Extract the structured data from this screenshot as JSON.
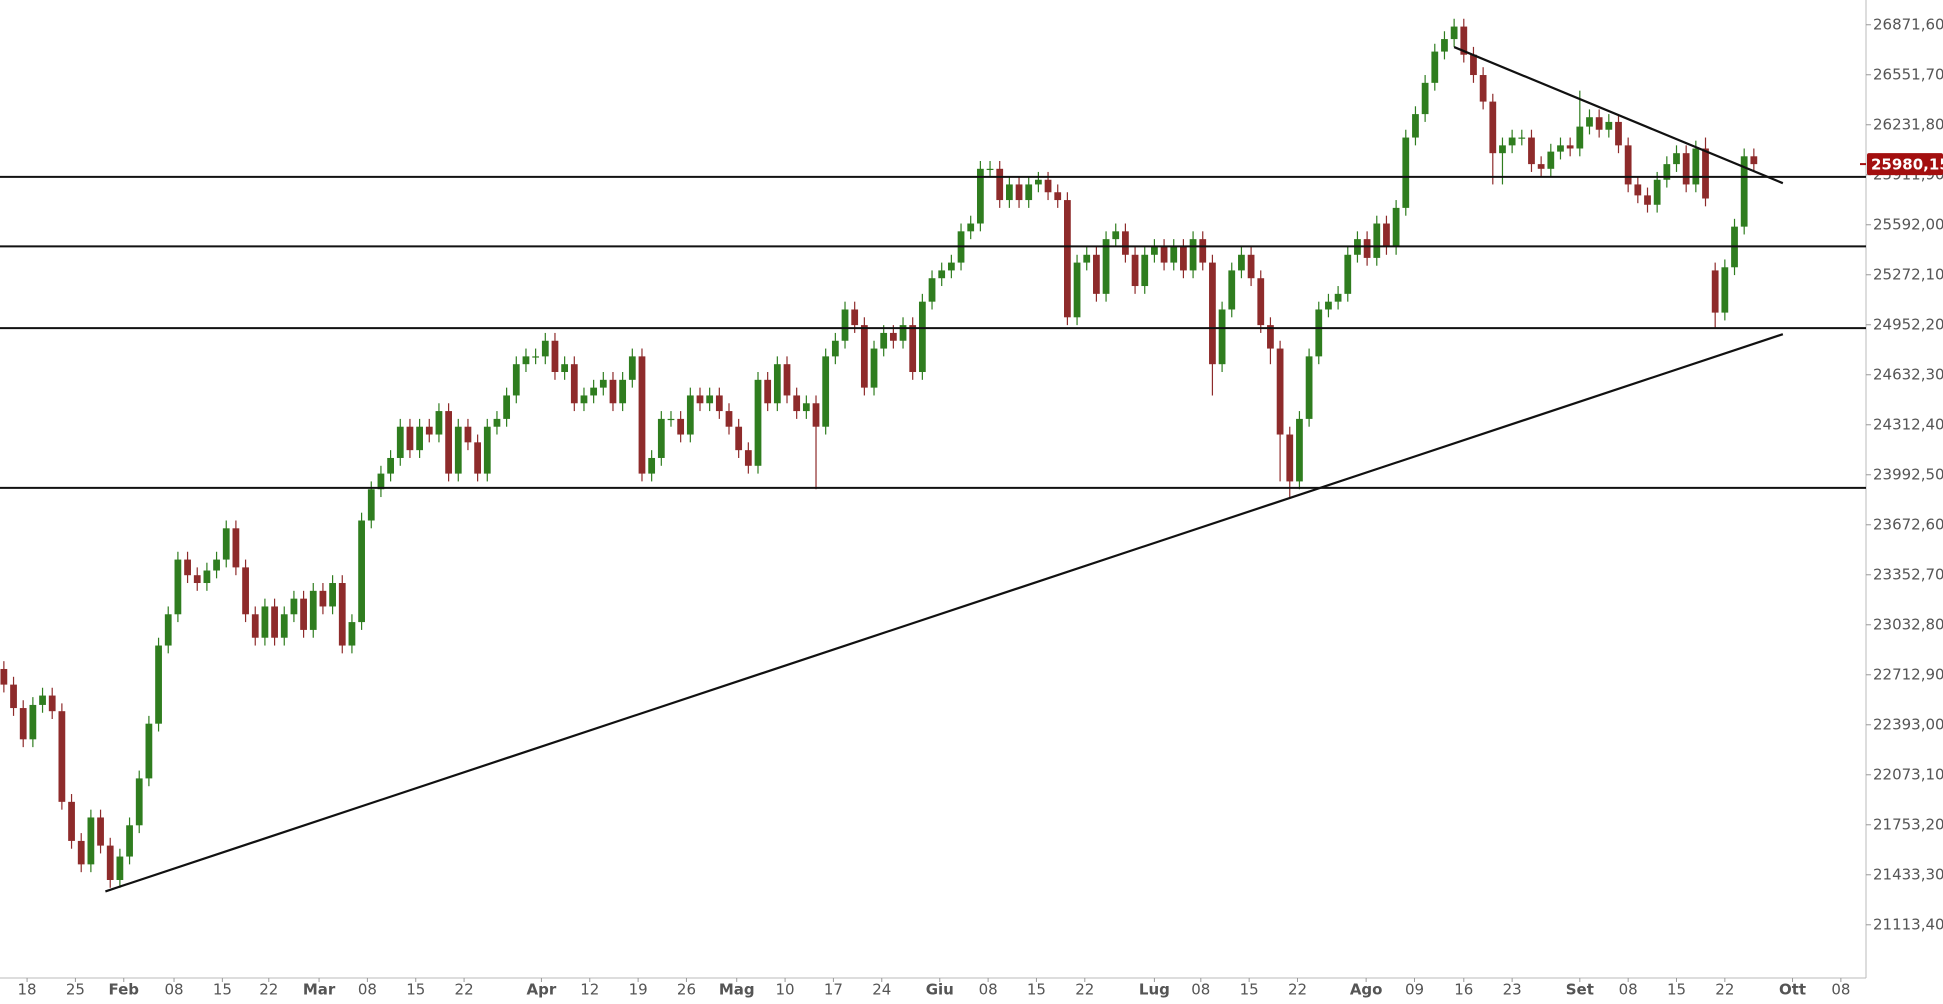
{
  "chart_data": {
    "type": "candlestick",
    "up_color": "#2f7d1f",
    "down_color": "#8e2b2b",
    "xlim": [
      -0.4,
      192.6
    ],
    "ylim": [
      20773,
      27030
    ],
    "yticks": [
      {
        "value": 26871.6,
        "label": "26871,60"
      },
      {
        "value": 26551.7,
        "label": "26551,70"
      },
      {
        "value": 26231.8,
        "label": "26231,80"
      },
      {
        "value": 25911.9,
        "label": "25911,90"
      },
      {
        "value": 25592,
        "label": "25592,00"
      },
      {
        "value": 25272.1,
        "label": "25272,10"
      },
      {
        "value": 24952.2,
        "label": "24952,20"
      },
      {
        "value": 24632.3,
        "label": "24632,30"
      },
      {
        "value": 24312.4,
        "label": "24312,40"
      },
      {
        "value": 23992.5,
        "label": "23992,50"
      },
      {
        "value": 23672.6,
        "label": "23672,60"
      },
      {
        "value": 23352.7,
        "label": "23352,70"
      },
      {
        "value": 23032.8,
        "label": "23032,80"
      },
      {
        "value": 22712.9,
        "label": "22712,90"
      },
      {
        "value": 22393,
        "label": "22393,00"
      },
      {
        "value": 22073.1,
        "label": "22073,10"
      },
      {
        "value": 21753.2,
        "label": "21753,20"
      },
      {
        "value": 21433.3,
        "label": "21433,30"
      },
      {
        "value": 21113.4,
        "label": "21113,40"
      }
    ],
    "xticks": [
      {
        "value": 2.4,
        "label": "18"
      },
      {
        "value": 7.4,
        "label": "25"
      },
      {
        "value": 12.4,
        "label": "Feb"
      },
      {
        "value": 17.6,
        "label": "08"
      },
      {
        "value": 22.6,
        "label": "15"
      },
      {
        "value": 27.4,
        "label": "22"
      },
      {
        "value": 32.6,
        "label": "Mar"
      },
      {
        "value": 37.6,
        "label": "08"
      },
      {
        "value": 42.6,
        "label": "15"
      },
      {
        "value": 47.6,
        "label": "22"
      },
      {
        "value": 55.6,
        "label": "Apr"
      },
      {
        "value": 60.6,
        "label": "12"
      },
      {
        "value": 65.6,
        "label": "19"
      },
      {
        "value": 70.6,
        "label": "26"
      },
      {
        "value": 75.8,
        "label": "Mag"
      },
      {
        "value": 80.8,
        "label": "10"
      },
      {
        "value": 85.8,
        "label": "17"
      },
      {
        "value": 90.8,
        "label": "24"
      },
      {
        "value": 96.8,
        "label": "Giu"
      },
      {
        "value": 101.8,
        "label": "08"
      },
      {
        "value": 106.8,
        "label": "15"
      },
      {
        "value": 111.8,
        "label": "22"
      },
      {
        "value": 119,
        "label": "Lug"
      },
      {
        "value": 123.8,
        "label": "08"
      },
      {
        "value": 128.8,
        "label": "15"
      },
      {
        "value": 133.8,
        "label": "22"
      },
      {
        "value": 140.9,
        "label": "Ago"
      },
      {
        "value": 145.9,
        "label": "09"
      },
      {
        "value": 151,
        "label": "16"
      },
      {
        "value": 156,
        "label": "23"
      },
      {
        "value": 163,
        "label": "Set"
      },
      {
        "value": 168,
        "label": "08"
      },
      {
        "value": 173,
        "label": "15"
      },
      {
        "value": 178,
        "label": "22"
      },
      {
        "value": 185,
        "label": "Ott"
      },
      {
        "value": 190,
        "label": "08"
      }
    ],
    "last_price": {
      "value": 25980.15,
      "label": "25980,15"
    },
    "hlines": [
      25898,
      25454,
      24931,
      23909
    ],
    "trendlines": [
      {
        "x": [
          150,
          184
        ],
        "y": [
          26729,
          25858
        ]
      },
      {
        "x": [
          10.5,
          184
        ],
        "y": [
          21327,
          24892
        ]
      }
    ],
    "x": [
      0,
      1,
      2,
      3,
      4,
      5,
      6,
      7,
      8,
      9,
      10,
      11,
      12,
      13,
      14,
      15,
      16,
      17,
      18,
      19,
      20,
      21,
      22,
      23,
      24,
      25,
      26,
      27,
      28,
      29,
      30,
      31,
      32,
      33,
      34,
      35,
      36,
      37,
      38,
      39,
      40,
      41,
      42,
      43,
      44,
      45,
      46,
      47,
      48,
      49,
      50,
      51,
      52,
      53,
      54,
      55,
      56,
      57,
      58,
      59,
      60,
      61,
      62,
      63,
      64,
      65,
      66,
      67,
      68,
      69,
      70,
      71,
      72,
      73,
      74,
      75,
      76,
      77,
      78,
      79,
      80,
      81,
      82,
      83,
      84,
      85,
      86,
      87,
      88,
      89,
      90,
      91,
      92,
      93,
      94,
      95,
      96,
      97,
      98,
      99,
      100,
      101,
      102,
      103,
      104,
      105,
      106,
      107,
      108,
      109,
      110,
      111,
      112,
      113,
      114,
      115,
      116,
      117,
      118,
      119,
      120,
      121,
      122,
      123,
      124,
      125,
      126,
      127,
      128,
      129,
      130,
      131,
      132,
      133,
      134,
      135,
      136,
      137,
      138,
      139,
      140,
      141,
      142,
      143,
      144,
      145,
      146,
      147,
      148,
      149,
      150,
      151,
      152,
      153,
      154,
      155,
      156,
      157,
      158,
      159,
      160,
      161,
      162,
      163,
      164,
      165,
      166,
      167,
      168,
      169,
      170,
      171,
      172,
      173,
      174,
      175,
      176,
      177,
      178,
      179,
      180,
      181
    ],
    "open": [
      22750,
      22650,
      22500,
      22300,
      22520,
      22580,
      22480,
      21900,
      21650,
      21500,
      21800,
      21620,
      21400,
      21550,
      21750,
      22050,
      22400,
      22900,
      23100,
      23450,
      23350,
      23300,
      23380,
      23450,
      23650,
      23400,
      23100,
      22950,
      23150,
      22950,
      23100,
      23200,
      23000,
      23250,
      23150,
      23300,
      22900,
      23050,
      23700,
      23900,
      24000,
      24100,
      24300,
      24150,
      24300,
      24250,
      24400,
      24000,
      24300,
      24200,
      24000,
      24300,
      24350,
      24500,
      24700,
      24750,
      24750,
      24850,
      24650,
      24700,
      24450,
      24500,
      24550,
      24600,
      24450,
      24600,
      24750,
      24000,
      24100,
      24350,
      24350,
      24250,
      24500,
      24450,
      24500,
      24400,
      24300,
      24150,
      24050,
      24600,
      24450,
      24700,
      24500,
      24400,
      24450,
      24300,
      24750,
      24850,
      25050,
      24950,
      24550,
      24800,
      24900,
      24850,
      24950,
      24650,
      25100,
      25250,
      25300,
      25350,
      25550,
      25600,
      25950,
      25950,
      25750,
      25850,
      25750,
      25850,
      25880,
      25800,
      25750,
      25000,
      25350,
      25400,
      25150,
      25500,
      25550,
      25400,
      25200,
      25400,
      25450,
      25350,
      25450,
      25300,
      25500,
      25350,
      24700,
      25050,
      25300,
      25400,
      25250,
      24950,
      24800,
      24250,
      23950,
      24350,
      24750,
      25050,
      25100,
      25150,
      25400,
      25500,
      25380,
      25600,
      25450,
      25700,
      26150,
      26300,
      26500,
      26700,
      26780,
      26860,
      26680,
      26550,
      26380,
      26050,
      26100,
      26150,
      26150,
      25980,
      25950,
      26060,
      26100,
      26080,
      26220,
      26280,
      26200,
      26250,
      26100,
      25850,
      25780,
      25720,
      25880,
      25980,
      26050,
      25850,
      26080,
      25300,
      25030,
      25320,
      25580,
      26030
    ],
    "high": [
      22800,
      22700,
      22550,
      22570,
      22630,
      22630,
      22530,
      21950,
      21700,
      21850,
      21850,
      21670,
      21600,
      21800,
      22100,
      22450,
      22950,
      23150,
      23500,
      23500,
      23400,
      23430,
      23500,
      23700,
      23700,
      23450,
      23150,
      23200,
      23200,
      23150,
      23250,
      23250,
      23300,
      23300,
      23350,
      23350,
      23100,
      23750,
      23950,
      24050,
      24150,
      24350,
      24350,
      24350,
      24350,
      24450,
      24450,
      24350,
      24350,
      24250,
      24350,
      24400,
      24550,
      24750,
      24800,
      24800,
      24900,
      24900,
      24750,
      24750,
      24550,
      24600,
      24650,
      24650,
      24650,
      24800,
      24800,
      24150,
      24400,
      24400,
      24400,
      24550,
      24550,
      24550,
      24550,
      24450,
      24350,
      24200,
      24650,
      24650,
      24750,
      24750,
      24550,
      24500,
      24500,
      24800,
      24900,
      25100,
      25100,
      25000,
      24850,
      24950,
      24950,
      25000,
      25000,
      25150,
      25300,
      25350,
      25400,
      25600,
      25650,
      26000,
      26000,
      26000,
      25900,
      25900,
      25900,
      25930,
      25930,
      25850,
      25800,
      25400,
      25450,
      25450,
      25550,
      25600,
      25600,
      25450,
      25450,
      25500,
      25500,
      25500,
      25500,
      25550,
      25550,
      25400,
      25100,
      25350,
      25450,
      25450,
      25300,
      25000,
      24850,
      24300,
      24400,
      24800,
      25100,
      25150,
      25200,
      25450,
      25550,
      25550,
      25650,
      25650,
      25750,
      26200,
      26350,
      26550,
      26750,
      26830,
      26910,
      26910,
      26730,
      26600,
      26430,
      26150,
      26200,
      26200,
      26200,
      26030,
      26110,
      26150,
      26150,
      26450,
      26330,
      26330,
      26300,
      26300,
      26150,
      25900,
      25830,
      25930,
      26030,
      26100,
      26100,
      26130,
      26150,
      25350,
      25370,
      25630,
      26080,
      26080
    ],
    "low": [
      22600,
      22450,
      22250,
      22250,
      22470,
      22430,
      21850,
      21600,
      21450,
      21450,
      21570,
      21350,
      21350,
      21500,
      21700,
      22000,
      22350,
      22850,
      23050,
      23300,
      23250,
      23250,
      23330,
      23400,
      23350,
      23050,
      22900,
      22900,
      22900,
      22900,
      23050,
      22950,
      22950,
      23100,
      23100,
      22850,
      22850,
      23000,
      23650,
      23850,
      23950,
      24050,
      24100,
      24100,
      24200,
      24200,
      23950,
      23950,
      24150,
      23950,
      23950,
      24250,
      24300,
      24450,
      24650,
      24700,
      24700,
      24600,
      24600,
      24400,
      24400,
      24450,
      24500,
      24400,
      24400,
      24550,
      23950,
      23950,
      24050,
      24300,
      24200,
      24200,
      24400,
      24400,
      24350,
      24250,
      24100,
      24000,
      24000,
      24400,
      24400,
      24450,
      24350,
      24350,
      23900,
      24250,
      24700,
      24800,
      24900,
      24500,
      24500,
      24750,
      24800,
      24800,
      24600,
      24600,
      25050,
      25200,
      25250,
      25300,
      25500,
      25550,
      25900,
      25700,
      25700,
      25700,
      25700,
      25800,
      25750,
      25700,
      24950,
      24950,
      25300,
      25100,
      25100,
      25450,
      25350,
      25150,
      25150,
      25350,
      25300,
      25300,
      25250,
      25250,
      25300,
      24500,
      24650,
      25000,
      25250,
      25200,
      24900,
      24700,
      23950,
      23850,
      23900,
      24300,
      24700,
      25000,
      25050,
      25100,
      25350,
      25330,
      25330,
      25400,
      25400,
      25650,
      26100,
      26250,
      26450,
      26650,
      26730,
      26630,
      26500,
      26330,
      25850,
      25850,
      26050,
      26100,
      25930,
      25900,
      25900,
      26010,
      26030,
      26030,
      26170,
      26150,
      26150,
      26050,
      25800,
      25730,
      25670,
      25670,
      25830,
      25930,
      25800,
      25800,
      25710,
      24930,
      24980,
      25270,
      25530,
      25930
    ],
    "close": [
      22650,
      22500,
      22300,
      22520,
      22580,
      22480,
      21900,
      21650,
      21500,
      21800,
      21620,
      21400,
      21550,
      21750,
      22050,
      22400,
      22900,
      23100,
      23450,
      23350,
      23300,
      23380,
      23450,
      23650,
      23400,
      23100,
      22950,
      23150,
      22950,
      23100,
      23200,
      23000,
      23250,
      23150,
      23300,
      22900,
      23050,
      23700,
      23900,
      24000,
      24100,
      24300,
      24150,
      24300,
      24250,
      24400,
      24000,
      24300,
      24200,
      24000,
      24300,
      24350,
      24500,
      24700,
      24750,
      24750,
      24850,
      24650,
      24700,
      24450,
      24500,
      24550,
      24600,
      24450,
      24600,
      24750,
      24000,
      24100,
      24350,
      24350,
      24250,
      24500,
      24450,
      24500,
      24400,
      24300,
      24150,
      24050,
      24600,
      24450,
      24700,
      24500,
      24400,
      24450,
      24300,
      24750,
      24850,
      25050,
      24950,
      24550,
      24800,
      24900,
      24850,
      24950,
      24650,
      25100,
      25250,
      25300,
      25350,
      25550,
      25600,
      25950,
      25950,
      25750,
      25850,
      25750,
      25850,
      25880,
      25800,
      25750,
      25000,
      25350,
      25400,
      25150,
      25500,
      25550,
      25400,
      25200,
      25400,
      25450,
      25350,
      25450,
      25300,
      25500,
      25350,
      24700,
      25050,
      25300,
      25400,
      25250,
      24950,
      24800,
      24250,
      23950,
      24350,
      24750,
      25050,
      25100,
      25150,
      25400,
      25500,
      25380,
      25600,
      25450,
      25700,
      26150,
      26300,
      26500,
      26700,
      26780,
      26860,
      26680,
      26550,
      26380,
      26050,
      26100,
      26150,
      26150,
      25980,
      25950,
      26060,
      26100,
      26080,
      26220,
      26280,
      26200,
      26250,
      26100,
      25850,
      25780,
      25720,
      25880,
      25980,
      26050,
      25850,
      26080,
      25760,
      25030,
      25320,
      25580,
      26030,
      25980
    ]
  }
}
